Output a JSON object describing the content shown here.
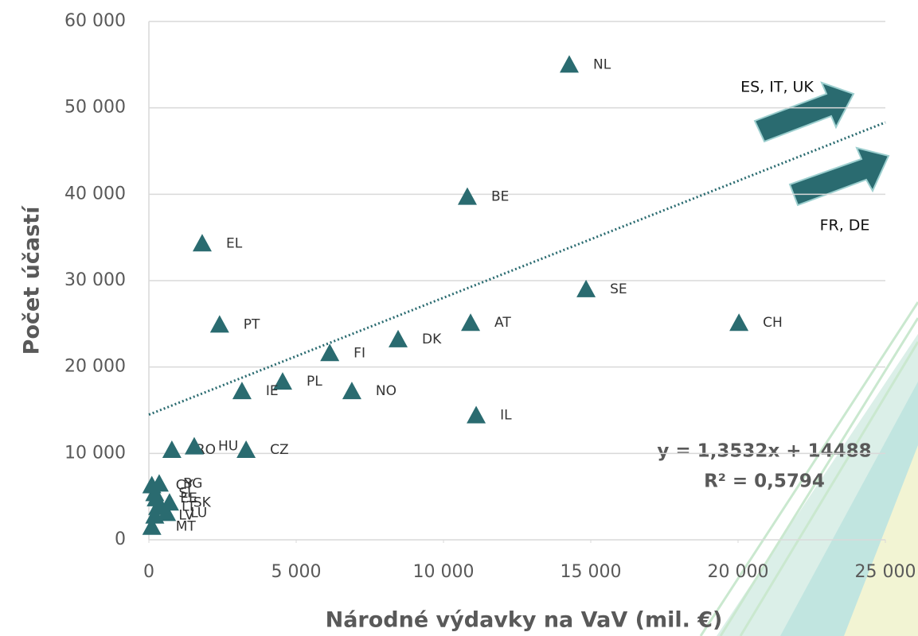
{
  "chart_data": {
    "type": "scatter",
    "y_label": "Počet účastí",
    "x_label": "Národné výdavky na VaV (mil. €)",
    "labels": [
      "NL",
      "BE",
      "EL",
      "SE",
      "CH",
      "AT",
      "PT",
      "DK",
      "FI",
      "PL",
      "IE",
      "NO",
      "IL",
      "CZ",
      "RO",
      "HU",
      "BG",
      "CY",
      "EE",
      "SI",
      "SK",
      "LT",
      "LV",
      "LU",
      "MT"
    ],
    "x": [
      14270,
      10810,
      1810,
      14840,
      20030,
      10920,
      2400,
      8460,
      6140,
      4540,
      3160,
      6890,
      11110,
      3300,
      780,
      1540,
      350,
      100,
      250,
      200,
      700,
      300,
      200,
      600,
      100
    ],
    "values": [
      55000,
      39700,
      34300,
      29000,
      25100,
      25100,
      24900,
      23200,
      21600,
      18300,
      17200,
      17200,
      14400,
      10400,
      10400,
      10800,
      6500,
      6300,
      4800,
      5400,
      4300,
      3800,
      2800,
      3100,
      1500
    ],
    "color": "#2a6b70",
    "xlim": [
      0,
      25000
    ],
    "xticks": [
      0,
      {
        "value": 5000,
        "label": "5 000"
      },
      {
        "value": 10000,
        "label": "10 000"
      },
      {
        "value": 15000,
        "label": "15 000"
      },
      {
        "value": 20000,
        "label": "20 000"
      },
      {
        "value": 25000,
        "label": "25 000"
      }
    ],
    "ylim": [
      0,
      60000
    ],
    "yticks": [
      0,
      {
        "value": 10000,
        "label": "10 000"
      },
      {
        "value": 20000,
        "label": "20 000"
      },
      {
        "value": 30000,
        "label": "30 000"
      },
      {
        "value": 40000,
        "label": "40 000"
      },
      {
        "value": 50000,
        "label": "50 000"
      },
      {
        "value": 60000,
        "label": "60 000"
      }
    ],
    "grid": true,
    "trendline": {
      "slope": 1.3532,
      "intercept": 14488,
      "equation": "y = 1,3532x + 14488",
      "r2": "R² = 0,5794"
    },
    "annotations": [
      "ES, IT, UK",
      "FR, DE"
    ]
  }
}
